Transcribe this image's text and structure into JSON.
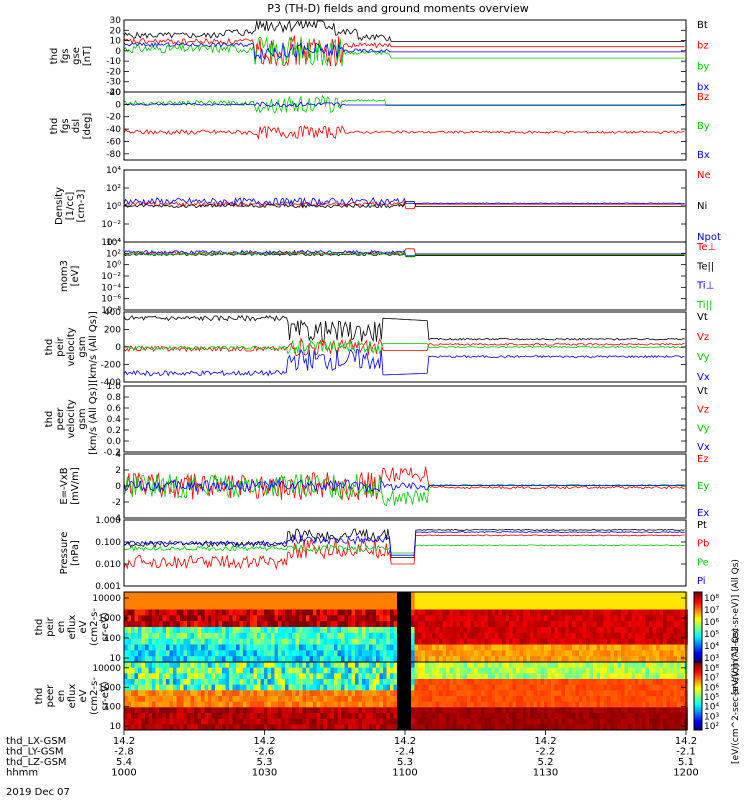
{
  "title": "P3 (TH-D) fields and ground moments overview",
  "date_label": "2019 Dec 07",
  "chart_data": {
    "type": "line",
    "x_range": [
      "10:00",
      "12:00"
    ],
    "panels": [
      {
        "id": "fgs_gse",
        "ylabel": [
          "thd",
          "fgs",
          "gse",
          "[nT]"
        ],
        "ylim": [
          -40,
          30
        ],
        "ticks": [
          "30",
          "20",
          "10",
          "0",
          "-10",
          "-20",
          "-30",
          "-40"
        ],
        "tick_values": [
          30,
          20,
          10,
          0,
          -10,
          -20,
          -30,
          -40
        ],
        "legend": [
          {
            "name": "Bt",
            "color": "#000000"
          },
          {
            "name": "bz",
            "color": "#ff0000"
          },
          {
            "name": "by",
            "color": "#00cc00"
          },
          {
            "name": "bx",
            "color": "#0000ff"
          }
        ]
      },
      {
        "id": "fgs_dsl",
        "ylabel": [
          "thd",
          "fgs",
          "dsl",
          "[deg]"
        ],
        "ylim": [
          -90,
          20
        ],
        "ticks": [
          "20",
          "0",
          "-20",
          "-40",
          "-60",
          "-80"
        ],
        "tick_values": [
          20,
          0,
          -20,
          -40,
          -60,
          -80
        ],
        "legend": [
          {
            "name": "Bz",
            "color": "#ff0000"
          },
          {
            "name": "By",
            "color": "#00cc00"
          },
          {
            "name": "Bx",
            "color": "#0000ff"
          }
        ]
      },
      {
        "id": "density",
        "ylabel": [
          "Density",
          "[1/cc]",
          "[cm-3]"
        ],
        "ylim_log": [
          -4,
          4
        ],
        "ticks": [
          "10⁴",
          "10²",
          "10⁰",
          "10⁻²",
          "10⁻⁴"
        ],
        "tick_values": [
          4,
          2,
          0,
          -2,
          -4
        ],
        "legend": [
          {
            "name": "Ne",
            "color": "#ff0000"
          },
          {
            "name": "Ni",
            "color": "#000000"
          },
          {
            "name": "Npot",
            "color": "#0000ff"
          }
        ]
      },
      {
        "id": "temp",
        "ylabel": [
          "mom3",
          "[eV]"
        ],
        "ylim_log": [
          -8,
          4
        ],
        "ticks": [
          "10⁴",
          "10²",
          "10⁰",
          "10⁻²",
          "10⁻⁴",
          "10⁻⁶",
          "10⁻⁸"
        ],
        "tick_values": [
          4,
          2,
          0,
          -2,
          -4,
          -6,
          -8
        ],
        "legend": [
          {
            "name": "Te⊥",
            "color": "#ff0000"
          },
          {
            "name": "Te||",
            "color": "#000000"
          },
          {
            "name": "Ti⊥",
            "color": "#0000ff"
          },
          {
            "name": "Ti||",
            "color": "#00cc00"
          }
        ]
      },
      {
        "id": "peir_v",
        "ylabel": [
          "thd",
          "peir",
          "velocity",
          "gsm",
          "[km/s (All Qs)]"
        ],
        "ylim": [
          -400,
          400
        ],
        "ticks": [
          "400",
          "200",
          "0",
          "-200",
          "-400"
        ],
        "tick_values": [
          400,
          200,
          0,
          -200,
          -400
        ],
        "legend": [
          {
            "name": "Vt",
            "color": "#000000"
          },
          {
            "name": "Vz",
            "color": "#ff0000"
          },
          {
            "name": "Vy",
            "color": "#00cc00"
          },
          {
            "name": "Vx",
            "color": "#0000ff"
          }
        ]
      },
      {
        "id": "peer_v",
        "ylabel": [
          "thd",
          "peer",
          "velocity",
          "gsm",
          "[km/s (All Qs)]"
        ],
        "ylim": [
          -0.2,
          1.0
        ],
        "ticks": [
          "1.0",
          "0.8",
          "0.6",
          "0.4",
          "0.2",
          "0.0",
          "-0.2"
        ],
        "tick_values": [
          1.0,
          0.8,
          0.6,
          0.4,
          0.2,
          0.0,
          -0.2
        ],
        "legend": [
          {
            "name": "Vt",
            "color": "#000000"
          },
          {
            "name": "Vz",
            "color": "#ff0000"
          },
          {
            "name": "Vy",
            "color": "#00cc00"
          },
          {
            "name": "Vx",
            "color": "#0000ff"
          }
        ]
      },
      {
        "id": "exb",
        "ylabel": [
          "E=-VxB",
          "[mV/m]"
        ],
        "ylim": [
          -4,
          4
        ],
        "ticks": [
          "4",
          "2",
          "0",
          "-2",
          "-4"
        ],
        "tick_values": [
          4,
          2,
          0,
          -2,
          -4
        ],
        "legend": [
          {
            "name": "Ez",
            "color": "#ff0000"
          },
          {
            "name": "Ey",
            "color": "#00cc00"
          },
          {
            "name": "Ex",
            "color": "#0000ff"
          }
        ]
      },
      {
        "id": "pressure",
        "ylabel": [
          "Pressure",
          "[nPa]"
        ],
        "ylim_log": [
          -3,
          0
        ],
        "ticks": [
          "1.000",
          "0.100",
          "0.010",
          "0.001"
        ],
        "tick_values": [
          0,
          -1,
          -2,
          -3
        ],
        "legend": [
          {
            "name": "Pt",
            "color": "#000000"
          },
          {
            "name": "Pb",
            "color": "#ff0000"
          },
          {
            "name": "Pe",
            "color": "#00cc00"
          },
          {
            "name": "Pi",
            "color": "#0000ff"
          }
        ]
      },
      {
        "id": "peir_spec",
        "ylabel": [
          "thd",
          "peir",
          "en",
          "eflux",
          "eV",
          "(cm2-s-",
          "sr-eV)"
        ],
        "ylim_log": [
          0.8,
          4.3
        ],
        "ticks": [
          "10000",
          "1000",
          "100",
          "10"
        ],
        "tick_values": [
          4,
          3,
          2,
          1
        ]
      },
      {
        "id": "peer_spec",
        "ylabel": [
          "thd",
          "peer",
          "en",
          "eflux",
          "eV",
          "(cm2-s-",
          "sr-eV)"
        ],
        "ylim_log": [
          0.8,
          4.3
        ],
        "ticks": [
          "10000",
          "1000",
          "100",
          "10"
        ],
        "tick_values": [
          4,
          3,
          2,
          1
        ]
      }
    ],
    "colorbars": [
      {
        "ticks": [
          "10⁸",
          "10⁷",
          "10⁶",
          "10⁵",
          "10⁴",
          "10³"
        ],
        "label": "[eV/(cm^2-sec-sr-eV)] (All Qs)"
      },
      {
        "ticks": [
          "10⁸",
          "10⁷",
          "10⁶",
          "10⁵",
          "10⁴",
          "10³",
          "10²"
        ],
        "label": "[eV/(cm^2-sec-sr-eV)] (All Qs)"
      }
    ],
    "xaxis": {
      "row_labels": [
        "thd_LX-GSM",
        "thd_LY-GSM",
        "thd_LZ-GSM",
        "hhmm"
      ],
      "columns": [
        {
          "t": 0,
          "vals": [
            "14.2",
            "-2.8",
            "5.4",
            "1000"
          ]
        },
        {
          "t": 30,
          "vals": [
            "14.2",
            "-2.6",
            "5.3",
            "1030"
          ]
        },
        {
          "t": 60,
          "vals": [
            "14.2",
            "-2.4",
            "5.3",
            "1100"
          ]
        },
        {
          "t": 90,
          "vals": [
            "14.2",
            "-2.2",
            "5.2",
            "1130"
          ]
        },
        {
          "t": 120,
          "vals": [
            "14.2",
            "-2.1",
            "5.1",
            "1200"
          ]
        }
      ]
    }
  }
}
